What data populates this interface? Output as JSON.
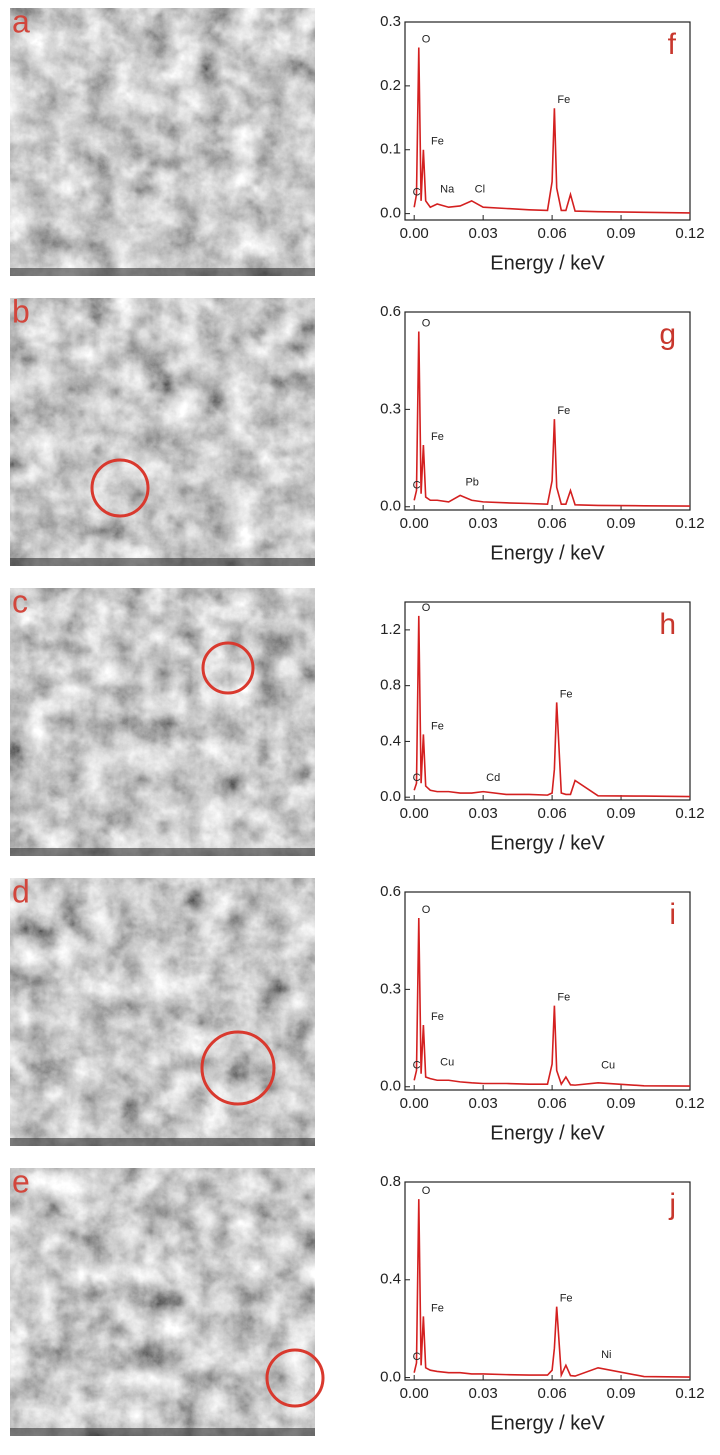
{
  "images": [
    {
      "label": "a"
    },
    {
      "label": "b"
    },
    {
      "label": "c"
    },
    {
      "label": "d"
    },
    {
      "label": "e"
    }
  ],
  "chart_data": [
    {
      "type": "line",
      "label": "f",
      "x_label": "Energy / keV",
      "x": [
        0,
        0.001,
        0.002,
        0.003,
        0.004,
        0.005,
        0.007,
        0.01,
        0.015,
        0.02,
        0.025,
        0.03,
        0.04,
        0.05,
        0.058,
        0.06,
        0.061,
        0.062,
        0.064,
        0.066,
        0.068,
        0.07,
        0.08,
        0.1,
        0.12
      ],
      "series": [
        {
          "color": "#d42020",
          "values": [
            0.01,
            0.03,
            0.26,
            0.02,
            0.1,
            0.02,
            0.01,
            0.015,
            0.01,
            0.012,
            0.02,
            0.01,
            0.008,
            0.006,
            0.005,
            0.05,
            0.165,
            0.04,
            0.005,
            0.005,
            0.03,
            0.004,
            0.003,
            0.002,
            0.001
          ]
        }
      ],
      "xlim": [
        -0.004,
        0.12
      ],
      "ylim": [
        -0.01,
        0.3
      ],
      "xticks": [
        {
          "value": 0,
          "label": "0.00"
        },
        0.03,
        0.06,
        0.09,
        0.12
      ],
      "yticks": [
        {
          "value": 0,
          "label": "0.0"
        },
        0.1,
        0.2,
        0.3
      ],
      "annotations": [
        {
          "text": "C",
          "x": -0.002,
          "y": 0.02
        },
        {
          "text": "O",
          "x": 0.002,
          "y": 0.26
        },
        {
          "text": "Fe",
          "x": 0.006,
          "y": 0.1
        },
        {
          "text": "Na",
          "x": 0.01,
          "y": 0.025
        },
        {
          "text": "Cl",
          "x": 0.025,
          "y": 0.025
        },
        {
          "text": "Fe",
          "x": 0.061,
          "y": 0.165
        }
      ]
    },
    {
      "type": "line",
      "label": "g",
      "x_label": "Energy / keV",
      "x": [
        0,
        0.001,
        0.002,
        0.003,
        0.004,
        0.005,
        0.007,
        0.01,
        0.015,
        0.02,
        0.025,
        0.03,
        0.04,
        0.05,
        0.058,
        0.06,
        0.061,
        0.062,
        0.064,
        0.066,
        0.068,
        0.07,
        0.08,
        0.1,
        0.12
      ],
      "series": [
        {
          "color": "#d42020",
          "values": [
            0.02,
            0.05,
            0.54,
            0.04,
            0.19,
            0.03,
            0.02,
            0.02,
            0.015,
            0.035,
            0.02,
            0.015,
            0.012,
            0.01,
            0.008,
            0.08,
            0.27,
            0.06,
            0.008,
            0.008,
            0.05,
            0.006,
            0.004,
            0.003,
            0.002
          ]
        }
      ],
      "xlim": [
        -0.004,
        0.12
      ],
      "ylim": [
        -0.01,
        0.6
      ],
      "xticks": [
        {
          "value": 0,
          "label": "0.00"
        },
        0.03,
        0.06,
        0.09,
        0.12
      ],
      "yticks": [
        {
          "value": 0,
          "label": "0.0"
        },
        0.3,
        0.6
      ],
      "annotations": [
        {
          "text": "C",
          "x": -0.002,
          "y": 0.04
        },
        {
          "text": "O",
          "x": 0.002,
          "y": 0.54
        },
        {
          "text": "Fe",
          "x": 0.006,
          "y": 0.19
        },
        {
          "text": "Pb",
          "x": 0.021,
          "y": 0.05
        },
        {
          "text": "Fe",
          "x": 0.061,
          "y": 0.27
        }
      ]
    },
    {
      "type": "line",
      "label": "h",
      "x_label": "Energy / keV",
      "x": [
        0,
        0.001,
        0.002,
        0.003,
        0.004,
        0.005,
        0.007,
        0.01,
        0.015,
        0.02,
        0.025,
        0.03,
        0.04,
        0.05,
        0.058,
        0.06,
        0.061,
        0.062,
        0.064,
        0.066,
        0.068,
        0.07,
        0.08,
        0.1,
        0.12
      ],
      "series": [
        {
          "color": "#d42020",
          "values": [
            0.05,
            0.1,
            1.3,
            0.1,
            0.45,
            0.08,
            0.05,
            0.04,
            0.04,
            0.03,
            0.03,
            0.04,
            0.02,
            0.02,
            0.015,
            0.03,
            0.2,
            0.68,
            0.03,
            0.02,
            0.02,
            0.12,
            0.01,
            0.008,
            0.005
          ]
        }
      ],
      "xlim": [
        -0.004,
        0.12
      ],
      "ylim": [
        -0.02,
        1.4
      ],
      "xticks": [
        {
          "value": 0,
          "label": "0.00"
        },
        0.03,
        0.06,
        0.09,
        0.12
      ],
      "yticks": [
        {
          "value": 0,
          "label": "0.0"
        },
        0.4,
        0.8,
        1.2
      ],
      "annotations": [
        {
          "text": "C",
          "x": -0.002,
          "y": 0.08
        },
        {
          "text": "O",
          "x": 0.002,
          "y": 1.3
        },
        {
          "text": "Fe",
          "x": 0.006,
          "y": 0.45
        },
        {
          "text": "Cd",
          "x": 0.03,
          "y": 0.08
        },
        {
          "text": "Fe",
          "x": 0.062,
          "y": 0.68
        }
      ]
    },
    {
      "type": "line",
      "label": "i",
      "x_label": "Energy / keV",
      "x": [
        0,
        0.001,
        0.002,
        0.003,
        0.004,
        0.005,
        0.007,
        0.01,
        0.015,
        0.02,
        0.025,
        0.03,
        0.04,
        0.05,
        0.058,
        0.06,
        0.061,
        0.062,
        0.064,
        0.066,
        0.068,
        0.07,
        0.08,
        0.1,
        0.12
      ],
      "series": [
        {
          "color": "#d42020",
          "values": [
            0.02,
            0.05,
            0.52,
            0.04,
            0.19,
            0.03,
            0.025,
            0.02,
            0.02,
            0.015,
            0.012,
            0.01,
            0.01,
            0.008,
            0.008,
            0.07,
            0.25,
            0.05,
            0.008,
            0.03,
            0.006,
            0.005,
            0.012,
            0.003,
            0.002
          ]
        }
      ],
      "xlim": [
        -0.004,
        0.12
      ],
      "ylim": [
        -0.01,
        0.6
      ],
      "xticks": [
        {
          "value": 0,
          "label": "0.00"
        },
        0.03,
        0.06,
        0.09,
        0.12
      ],
      "yticks": [
        {
          "value": 0,
          "label": "0.0"
        },
        0.3,
        0.6
      ],
      "annotations": [
        {
          "text": "C",
          "x": -0.002,
          "y": 0.04
        },
        {
          "text": "O",
          "x": 0.002,
          "y": 0.52
        },
        {
          "text": "Fe",
          "x": 0.006,
          "y": 0.19
        },
        {
          "text": "Cu",
          "x": 0.01,
          "y": 0.05
        },
        {
          "text": "Fe",
          "x": 0.061,
          "y": 0.25
        },
        {
          "text": "Cu",
          "x": 0.08,
          "y": 0.04
        }
      ]
    },
    {
      "type": "line",
      "label": "j",
      "x_label": "Energy / keV",
      "x": [
        0,
        0.001,
        0.002,
        0.003,
        0.004,
        0.005,
        0.007,
        0.01,
        0.015,
        0.02,
        0.025,
        0.03,
        0.04,
        0.05,
        0.058,
        0.06,
        0.061,
        0.062,
        0.064,
        0.066,
        0.068,
        0.07,
        0.08,
        0.1,
        0.12
      ],
      "series": [
        {
          "color": "#d42020",
          "values": [
            0.02,
            0.06,
            0.73,
            0.05,
            0.25,
            0.04,
            0.03,
            0.025,
            0.02,
            0.02,
            0.015,
            0.015,
            0.012,
            0.01,
            0.01,
            0.03,
            0.12,
            0.29,
            0.01,
            0.05,
            0.008,
            0.006,
            0.04,
            0.004,
            0.002
          ]
        }
      ],
      "xlim": [
        -0.004,
        0.12
      ],
      "ylim": [
        -0.01,
        0.8
      ],
      "xticks": [
        {
          "value": 0,
          "label": "0.00"
        },
        0.03,
        0.06,
        0.09,
        0.12
      ],
      "yticks": [
        {
          "value": 0,
          "label": "0.0"
        },
        0.4,
        0.8
      ],
      "annotations": [
        {
          "text": "C",
          "x": -0.002,
          "y": 0.05
        },
        {
          "text": "O",
          "x": 0.002,
          "y": 0.73
        },
        {
          "text": "Fe",
          "x": 0.006,
          "y": 0.25
        },
        {
          "text": "Fe",
          "x": 0.062,
          "y": 0.29
        },
        {
          "text": "Ni",
          "x": 0.08,
          "y": 0.06
        }
      ]
    }
  ]
}
